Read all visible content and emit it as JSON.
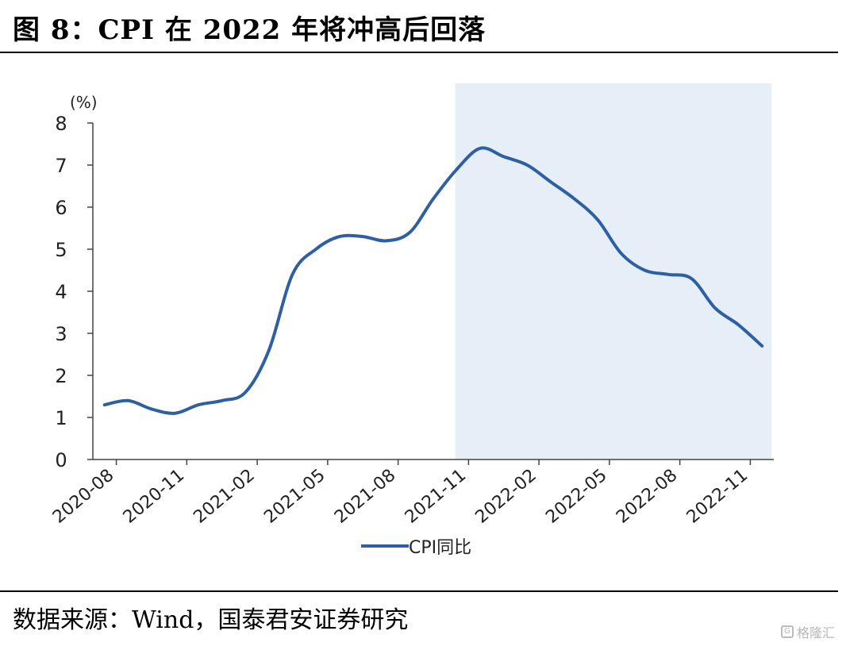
{
  "header": {
    "title": "图 8：CPI 在 2022 年将冲高后回落"
  },
  "footer": {
    "source": "数据来源：Wind，国泰君安证券研究"
  },
  "watermark": {
    "text": "格隆汇"
  },
  "colors": {
    "line": "#2e5fa3",
    "shade": "#e6eef8",
    "axis": "#444444"
  },
  "chart_data": {
    "type": "line",
    "title": "图 8：CPI 在 2022 年将冲高后回落",
    "ylabel": "(%)",
    "xlabel": "",
    "ylim": [
      0,
      8
    ],
    "yticks": [
      0,
      1,
      2,
      3,
      4,
      5,
      6,
      7,
      8
    ],
    "x": [
      "2020-08",
      "2020-09",
      "2020-10",
      "2020-11",
      "2020-12",
      "2021-01",
      "2021-02",
      "2021-03",
      "2021-04",
      "2021-05",
      "2021-06",
      "2021-07",
      "2021-08",
      "2021-09",
      "2021-10",
      "2021-11",
      "2021-12",
      "2022-01",
      "2022-02",
      "2022-03",
      "2022-04",
      "2022-05",
      "2022-06",
      "2022-07",
      "2022-08",
      "2022-09",
      "2022-10",
      "2022-11",
      "2022-12"
    ],
    "xtick_labels": [
      "2020-08",
      "2020-11",
      "2021-02",
      "2021-05",
      "2021-08",
      "2021-11",
      "2022-02",
      "2022-05",
      "2022-08",
      "2022-11"
    ],
    "series": [
      {
        "name": "CPI同比",
        "values": [
          1.3,
          1.4,
          1.2,
          1.1,
          1.3,
          1.4,
          1.6,
          2.6,
          4.4,
          5.0,
          5.3,
          5.3,
          5.2,
          5.4,
          6.2,
          6.9,
          7.4,
          7.2,
          7.0,
          6.6,
          6.2,
          5.7,
          4.9,
          4.5,
          4.4,
          4.3,
          3.6,
          3.2,
          2.7
        ]
      }
    ],
    "shaded_range": [
      "2021-11",
      "2022-12"
    ],
    "legend": {
      "position": "bottom-center",
      "entries": [
        "CPI同比"
      ]
    },
    "grid": false
  }
}
